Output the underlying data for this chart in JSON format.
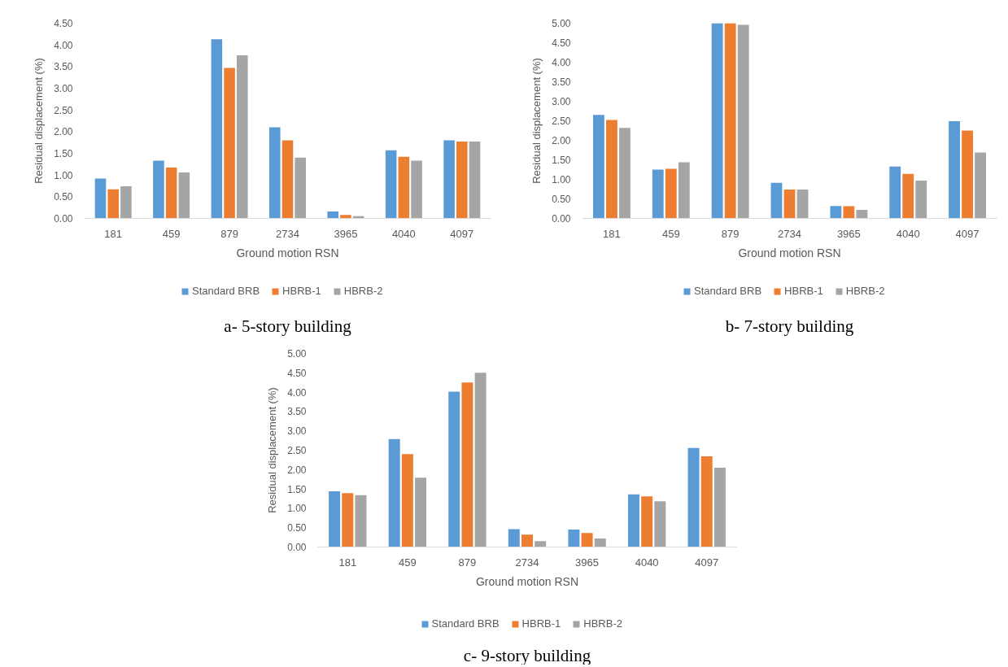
{
  "chart_data": [
    {
      "type": "bar",
      "title": "a- 5-story building",
      "xlabel": "Ground motion RSN",
      "ylabel": "Residual displacement (%)",
      "categories": [
        "181",
        "459",
        "879",
        "2734",
        "3965",
        "4040",
        "4097"
      ],
      "series": [
        {
          "name": "Standard BRB",
          "color": "#5b9bd5",
          "values": [
            0.92,
            1.33,
            4.13,
            2.1,
            0.16,
            1.57,
            1.8
          ]
        },
        {
          "name": "HBRB-1",
          "color": "#ed7d31",
          "values": [
            0.67,
            1.17,
            3.47,
            1.8,
            0.08,
            1.42,
            1.77
          ]
        },
        {
          "name": "HBRB-2",
          "color": "#a5a5a5",
          "values": [
            0.74,
            1.06,
            3.76,
            1.4,
            0.05,
            1.33,
            1.77
          ]
        }
      ],
      "ylim": [
        0,
        4.5
      ],
      "yticks": [
        {
          "value": 0,
          "label": "0.00"
        },
        {
          "value": 0.5,
          "label": "0.50"
        },
        {
          "value": 1,
          "label": "1.00"
        },
        {
          "value": 1.5,
          "label": "1.50"
        },
        {
          "value": 2,
          "label": "2.00"
        },
        {
          "value": 2.5,
          "label": "2.50"
        },
        {
          "value": 3,
          "label": "3.00"
        },
        {
          "value": 3.5,
          "label": "3.50"
        },
        {
          "value": 4,
          "label": "4.00"
        },
        {
          "value": 4.5,
          "label": "4.50"
        }
      ],
      "legend": "bottom"
    },
    {
      "type": "bar",
      "title": "b- 7-story building",
      "xlabel": "Ground motion RSN",
      "ylabel": "Residual displacement (%)",
      "categories": [
        "181",
        "459",
        "879",
        "2734",
        "3965",
        "4040",
        "4097"
      ],
      "series": [
        {
          "name": "Standard BRB",
          "color": "#5b9bd5",
          "values": [
            2.65,
            1.25,
            5.0,
            0.91,
            0.32,
            1.33,
            2.49
          ]
        },
        {
          "name": "HBRB-1",
          "color": "#ed7d31",
          "values": [
            2.52,
            1.27,
            5.0,
            0.74,
            0.31,
            1.14,
            2.25
          ]
        },
        {
          "name": "HBRB-2",
          "color": "#a5a5a5",
          "values": [
            2.32,
            1.44,
            4.96,
            0.74,
            0.22,
            0.97,
            1.69
          ]
        }
      ],
      "ylim": [
        0,
        5
      ],
      "yticks": [
        {
          "value": 0,
          "label": "0.00"
        },
        {
          "value": 0.5,
          "label": "0.50"
        },
        {
          "value": 1,
          "label": "1.00"
        },
        {
          "value": 1.5,
          "label": "1.50"
        },
        {
          "value": 2,
          "label": "2.00"
        },
        {
          "value": 2.5,
          "label": "2.50"
        },
        {
          "value": 3,
          "label": "3.00"
        },
        {
          "value": 3.5,
          "label": "3.50"
        },
        {
          "value": 4,
          "label": "4.00"
        },
        {
          "value": 4.5,
          "label": "4.50"
        },
        {
          "value": 5,
          "label": "5.00"
        }
      ],
      "legend": "bottom"
    },
    {
      "type": "bar",
      "title": "c- 9-story building",
      "xlabel": "Ground motion RSN",
      "ylabel": "Residual displacement (%)",
      "categories": [
        "181",
        "459",
        "879",
        "2734",
        "3965",
        "4040",
        "4097"
      ],
      "series": [
        {
          "name": "Standard BRB",
          "color": "#5b9bd5",
          "values": [
            1.44,
            2.79,
            4.01,
            0.46,
            0.45,
            1.36,
            2.56
          ]
        },
        {
          "name": "HBRB-1",
          "color": "#ed7d31",
          "values": [
            1.39,
            2.4,
            4.25,
            0.32,
            0.36,
            1.31,
            2.34
          ]
        },
        {
          "name": "HBRB-2",
          "color": "#a5a5a5",
          "values": [
            1.34,
            1.79,
            4.5,
            0.15,
            0.22,
            1.18,
            2.05
          ]
        }
      ],
      "ylim": [
        0,
        5
      ],
      "yticks": [
        {
          "value": 0,
          "label": "0.00"
        },
        {
          "value": 0.5,
          "label": "0.50"
        },
        {
          "value": 1,
          "label": "1.00"
        },
        {
          "value": 1.5,
          "label": "1.50"
        },
        {
          "value": 2,
          "label": "2.00"
        },
        {
          "value": 2.5,
          "label": "2.50"
        },
        {
          "value": 3,
          "label": "3.00"
        },
        {
          "value": 3.5,
          "label": "3.50"
        },
        {
          "value": 4,
          "label": "4.00"
        },
        {
          "value": 4.5,
          "label": "4.50"
        },
        {
          "value": 5,
          "label": "5.00"
        }
      ],
      "legend": "bottom"
    }
  ]
}
